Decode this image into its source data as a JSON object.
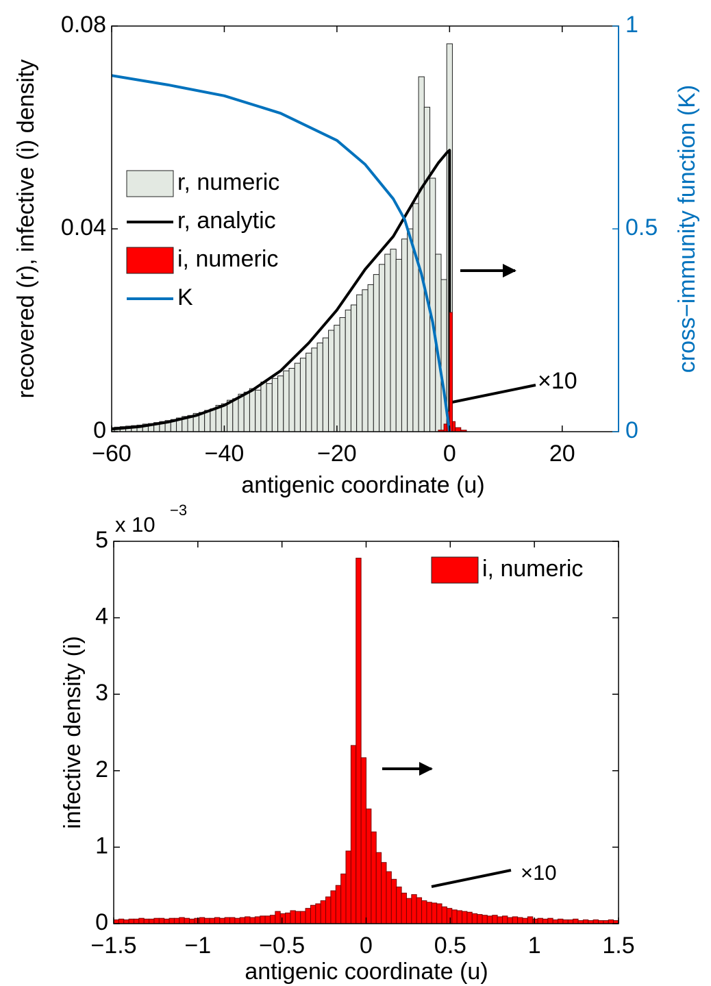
{
  "chart_data": [
    {
      "type": "histogram",
      "xlabel": "antigenic coordinate (u)",
      "ylabel": "recovered (r), infective (i) density",
      "y2label": "cross−immunity function (K)",
      "y2_color": "#0072bd",
      "xlim": [
        -60,
        30
      ],
      "ylim": [
        0,
        0.08
      ],
      "y2lim": [
        0,
        1
      ],
      "xticks": [
        {
          "value": -60,
          "label": "−60"
        },
        {
          "value": -40,
          "label": "−40"
        },
        {
          "value": -20,
          "label": "−20"
        },
        0,
        20
      ],
      "yticks": [
        0,
        0.04,
        0.08
      ],
      "y2ticks": [
        0,
        0.5,
        1
      ],
      "legend": "center left",
      "annotation": "×10",
      "series": [
        {
          "name": "r, numeric",
          "type": "histogram",
          "color": "#e3e9e2",
          "bins": [
            -60.5,
            -59.5,
            -58.5,
            -57.5,
            -56.5,
            -55.5,
            -54.5,
            -53.5,
            -52.5,
            -51.5,
            -50.5,
            -49.5,
            -48.5,
            -47.5,
            -46.5,
            -45.5,
            -44.5,
            -43.5,
            -42.5,
            -41.5,
            -40.5,
            -39.5,
            -38.5,
            -37.5,
            -36.5,
            -35.5,
            -34.5,
            -33.5,
            -32.5,
            -31.5,
            -30.5,
            -29.5,
            -28.5,
            -27.5,
            -26.5,
            -25.5,
            -24.5,
            -23.5,
            -22.5,
            -21.5,
            -20.5,
            -19.5,
            -18.5,
            -17.5,
            -16.5,
            -15.5,
            -14.5,
            -13.5,
            -12.5,
            -11.5,
            -10.5,
            -9.5,
            -8.5,
            -7.5,
            -6.5,
            -5.5,
            -4.5,
            -3.5,
            -2.5,
            -1.5,
            -0.5,
            0.5
          ],
          "values": [
            0.0008,
            0.0009,
            0.001,
            0.0011,
            0.0012,
            0.0013,
            0.0015,
            0.0016,
            0.0018,
            0.002,
            0.0022,
            0.0024,
            0.0027,
            0.003,
            0.0032,
            0.0036,
            0.0038,
            0.0042,
            0.0045,
            0.0052,
            0.0055,
            0.0062,
            0.0065,
            0.0074,
            0.0078,
            0.0085,
            0.0082,
            0.0098,
            0.0095,
            0.0105,
            0.011,
            0.012,
            0.0125,
            0.0135,
            0.0145,
            0.0155,
            0.0165,
            0.0175,
            0.0185,
            0.02,
            0.021,
            0.0225,
            0.024,
            0.025,
            0.027,
            0.028,
            0.029,
            0.031,
            0.033,
            0.035,
            0.036,
            0.034,
            0.038,
            0.04,
            0.045,
            0.07,
            0.064,
            0.05,
            0.035,
            0.03,
            0.0765
          ]
        },
        {
          "name": "r, analytic",
          "type": "line",
          "color": "#000000",
          "x": [
            -60,
            -55,
            -50,
            -45,
            -40,
            -35,
            -30,
            -25,
            -20,
            -15,
            -10,
            -5,
            -2,
            -0.5,
            0,
            0
          ],
          "values": [
            0.0005,
            0.001,
            0.0019,
            0.0032,
            0.0052,
            0.0082,
            0.012,
            0.0175,
            0.024,
            0.032,
            0.0385,
            0.048,
            0.053,
            0.055,
            0.0555,
            0
          ]
        },
        {
          "name": "i, numeric",
          "type": "histogram",
          "color": "#ff0000",
          "bins": [
            -2,
            -1,
            -0.5,
            0,
            0.5,
            1,
            2,
            3
          ],
          "values": [
            0.0003,
            0.0015,
            0.004,
            0.0235,
            0.002,
            0.0008,
            0.0003
          ]
        },
        {
          "name": "K",
          "type": "line",
          "axis": "y2",
          "color": "#0072bd",
          "x": [
            -60,
            -50,
            -40,
            -30,
            -20,
            -15,
            -10,
            -8,
            -5,
            -3,
            -1,
            0
          ],
          "values": [
            0.878,
            0.855,
            0.828,
            0.785,
            0.718,
            0.659,
            0.574,
            0.524,
            0.389,
            0.27,
            0.1,
            0
          ]
        }
      ]
    },
    {
      "type": "histogram",
      "xlabel": "antigenic coordinate (u)",
      "ylabel": "infective density (i)",
      "y_scale_label": "x 10",
      "y_scale_exponent": "−3",
      "xlim": [
        -1.5,
        1.5
      ],
      "ylim": [
        0,
        5
      ],
      "xticks": [
        {
          "value": -1.5,
          "label": "−1.5"
        },
        {
          "value": -1,
          "label": "−1"
        },
        {
          "value": -0.5,
          "label": "−0.5"
        },
        0,
        0.5,
        1,
        1.5
      ],
      "yticks": [
        0,
        1,
        2,
        3,
        4,
        5
      ],
      "legend": "upper right",
      "annotation": "×10",
      "series": [
        {
          "name": "i, numeric",
          "type": "histogram",
          "color": "#ff0000",
          "bins": [
            -1.5,
            -1.47,
            -1.44,
            -1.41,
            -1.38,
            -1.35,
            -1.32,
            -1.29,
            -1.26,
            -1.23,
            -1.2,
            -1.17,
            -1.14,
            -1.11,
            -1.08,
            -1.05,
            -1.02,
            -0.99,
            -0.96,
            -0.93,
            -0.9,
            -0.87,
            -0.84,
            -0.81,
            -0.78,
            -0.75,
            -0.72,
            -0.69,
            -0.66,
            -0.63,
            -0.6,
            -0.57,
            -0.54,
            -0.51,
            -0.48,
            -0.45,
            -0.42,
            -0.39,
            -0.36,
            -0.33,
            -0.3,
            -0.27,
            -0.24,
            -0.21,
            -0.18,
            -0.15,
            -0.12,
            -0.09,
            -0.06,
            -0.03,
            0,
            0.03,
            0.06,
            0.09,
            0.12,
            0.15,
            0.18,
            0.21,
            0.24,
            0.27,
            0.3,
            0.33,
            0.36,
            0.39,
            0.42,
            0.45,
            0.48,
            0.51,
            0.54,
            0.57,
            0.6,
            0.63,
            0.66,
            0.69,
            0.72,
            0.75,
            0.78,
            0.81,
            0.84,
            0.87,
            0.9,
            0.93,
            0.96,
            0.99,
            1.02,
            1.05,
            1.08,
            1.11,
            1.14,
            1.17,
            1.2,
            1.23,
            1.26,
            1.29,
            1.32,
            1.35,
            1.38,
            1.41,
            1.44,
            1.47,
            1.5
          ],
          "values": [
            0.05,
            0.06,
            0.05,
            0.06,
            0.06,
            0.07,
            0.06,
            0.06,
            0.07,
            0.07,
            0.06,
            0.07,
            0.07,
            0.08,
            0.07,
            0.06,
            0.07,
            0.08,
            0.07,
            0.07,
            0.08,
            0.07,
            0.08,
            0.08,
            0.07,
            0.08,
            0.09,
            0.08,
            0.09,
            0.1,
            0.1,
            0.11,
            0.16,
            0.13,
            0.14,
            0.17,
            0.16,
            0.16,
            0.2,
            0.24,
            0.26,
            0.3,
            0.35,
            0.43,
            0.5,
            0.65,
            0.95,
            2.33,
            4.78,
            2.17,
            1.5,
            1.2,
            0.93,
            0.8,
            0.68,
            0.58,
            0.48,
            0.4,
            0.33,
            0.38,
            0.34,
            0.3,
            0.28,
            0.27,
            0.26,
            0.22,
            0.2,
            0.18,
            0.17,
            0.16,
            0.15,
            0.13,
            0.12,
            0.11,
            0.1,
            0.11,
            0.09,
            0.1,
            0.08,
            0.09,
            0.08,
            0.07,
            0.09,
            0.06,
            0.07,
            0.06,
            0.07,
            0.05,
            0.06,
            0.05,
            0.05,
            0.06,
            0.04,
            0.05,
            0.04,
            0.05,
            0.04,
            0.04,
            0.05,
            0.04
          ]
        }
      ]
    }
  ]
}
